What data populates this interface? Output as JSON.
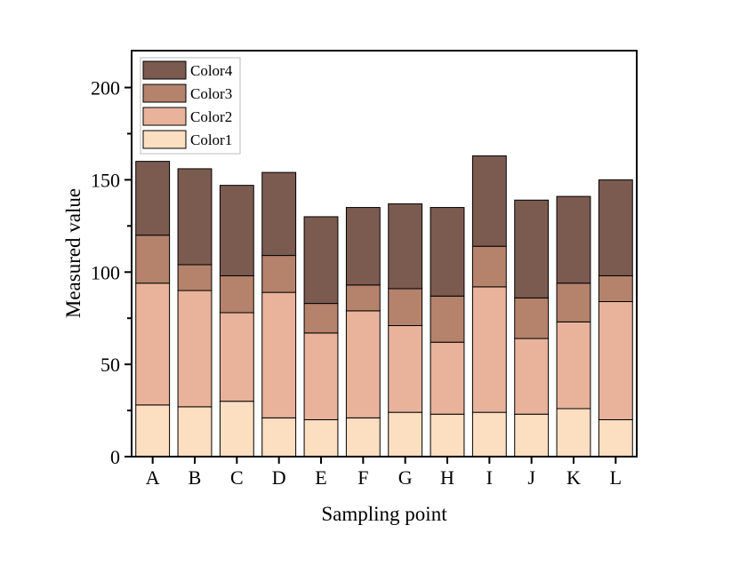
{
  "chart_data": {
    "type": "bar",
    "stacked": true,
    "title": "",
    "xlabel": "Sampling point",
    "ylabel": "Measured value",
    "ylim": [
      0,
      220
    ],
    "yticks": [
      0,
      50,
      100,
      150,
      200
    ],
    "grid": false,
    "legend_position": "top-left",
    "categories": [
      "A",
      "B",
      "C",
      "D",
      "E",
      "F",
      "G",
      "H",
      "I",
      "J",
      "K",
      "L"
    ],
    "series": [
      {
        "name": "Color1",
        "color": "#FCDEC0",
        "values": [
          28,
          27,
          30,
          21,
          20,
          21,
          24,
          23,
          24,
          23,
          26,
          20
        ]
      },
      {
        "name": "Color2",
        "color": "#E8B39A",
        "values": [
          66,
          63,
          48,
          68,
          47,
          58,
          47,
          39,
          68,
          41,
          47,
          64
        ]
      },
      {
        "name": "Color3",
        "color": "#B5826C",
        "values": [
          26,
          14,
          20,
          20,
          16,
          14,
          20,
          25,
          22,
          22,
          21,
          14
        ]
      },
      {
        "name": "Color4",
        "color": "#7B5A50",
        "values": [
          40,
          52,
          49,
          45,
          47,
          42,
          46,
          48,
          49,
          53,
          47,
          52
        ]
      }
    ]
  }
}
